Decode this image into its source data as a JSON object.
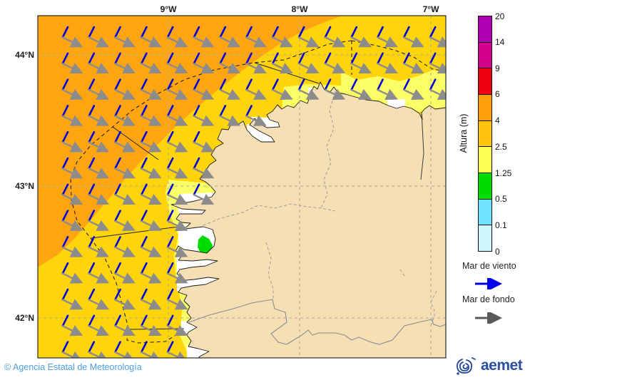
{
  "axes": {
    "x": [
      {
        "label": "9°W"
      },
      {
        "label": "8°W"
      },
      {
        "label": "7°W"
      }
    ],
    "y": [
      {
        "label": "44°N"
      },
      {
        "label": "43°N"
      },
      {
        "label": "42°N"
      }
    ]
  },
  "colorbar": {
    "title": "Altura (m)",
    "ticks": [
      "20",
      "14",
      "9",
      "6",
      "4",
      "2.5",
      "1.25",
      "0.5",
      "0.1",
      "0"
    ],
    "segment_colors_bottom_to_top": [
      "#cff5fe",
      "#6fe0ff",
      "#00dc00",
      "#fdff54",
      "#ffc40e",
      "#ffa00a",
      "#ee0011",
      "#d4008c",
      "#b000b4"
    ]
  },
  "legend": {
    "wind_sea_label": "Mar de viento",
    "swell_label": "Mar de fondo",
    "wind_sea_color": "#0000e8",
    "swell_color": "#5a5a5a"
  },
  "sea_colors": {
    "h_4_6": "#ffa512",
    "h_2p5_4": "#ffd40a",
    "h_1p25_2p5": "#fbff66",
    "h_0p5_1p25": "#00dc00",
    "calm_white": "#ffffff",
    "land": "#f6dfb3"
  },
  "arrows": {
    "wind_sea_color": "#0000d8",
    "swell_color": "#8c8c8c",
    "row_counts": [
      15,
      15,
      15,
      8,
      6,
      6,
      6,
      5,
      5,
      5,
      5,
      5,
      5
    ]
  },
  "attribution": "© Agencia Estatal de Meteorología",
  "logo_text": "aemet"
}
